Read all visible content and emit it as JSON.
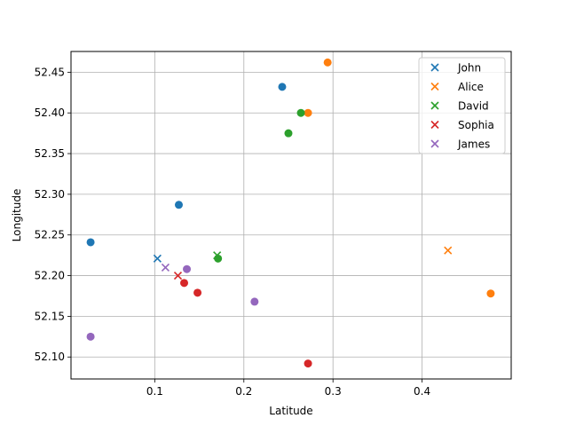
{
  "chart_data": {
    "type": "scatter",
    "title": "",
    "xlabel": "Latitude",
    "ylabel": "Longitude",
    "xlim": [
      0.006,
      0.5
    ],
    "ylim": [
      52.073,
      52.4755
    ],
    "xticks": [
      0.1,
      0.2,
      0.3,
      0.4
    ],
    "yticks": [
      52.1,
      52.15,
      52.2,
      52.25,
      52.3,
      52.35,
      52.4,
      52.45
    ],
    "grid": true,
    "legend_position": "top-right",
    "series": [
      {
        "name": "John",
        "color": "#1f77b4",
        "cross": [
          {
            "x": 0.103,
            "y": 52.221
          }
        ],
        "points": [
          {
            "x": 0.243,
            "y": 52.432
          },
          {
            "x": 0.127,
            "y": 52.287
          },
          {
            "x": 0.028,
            "y": 52.241
          }
        ]
      },
      {
        "name": "Alice",
        "color": "#ff7f0e",
        "cross": [
          {
            "x": 0.429,
            "y": 52.231
          }
        ],
        "points": [
          {
            "x": 0.294,
            "y": 52.462
          },
          {
            "x": 0.272,
            "y": 52.4
          },
          {
            "x": 0.477,
            "y": 52.178
          }
        ]
      },
      {
        "name": "David",
        "color": "#2ca02c",
        "cross": [
          {
            "x": 0.17,
            "y": 52.225
          }
        ],
        "points": [
          {
            "x": 0.264,
            "y": 52.4
          },
          {
            "x": 0.25,
            "y": 52.375
          },
          {
            "x": 0.171,
            "y": 52.221
          }
        ]
      },
      {
        "name": "Sophia",
        "color": "#d62728",
        "cross": [
          {
            "x": 0.126,
            "y": 52.2
          }
        ],
        "points": [
          {
            "x": 0.133,
            "y": 52.191
          },
          {
            "x": 0.148,
            "y": 52.179
          },
          {
            "x": 0.272,
            "y": 52.092
          }
        ]
      },
      {
        "name": "James",
        "color": "#9467bd",
        "cross": [
          {
            "x": 0.112,
            "y": 52.21
          }
        ],
        "points": [
          {
            "x": 0.136,
            "y": 52.208
          },
          {
            "x": 0.212,
            "y": 52.168
          },
          {
            "x": 0.028,
            "y": 52.125
          }
        ]
      }
    ]
  }
}
